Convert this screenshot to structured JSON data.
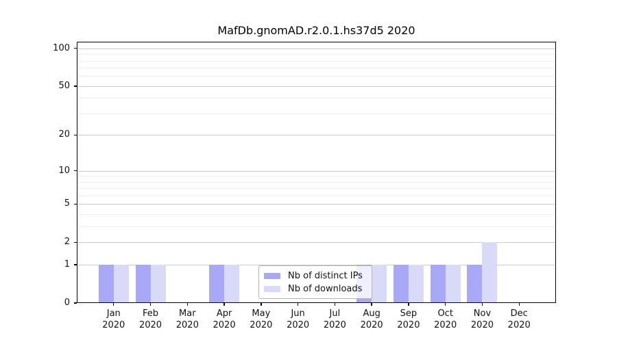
{
  "chart_data": {
    "type": "bar",
    "title": "MafDb.gnomAD.r2.0.1.hs37d5 2020",
    "categories": [
      "Jan",
      "Feb",
      "Mar",
      "Apr",
      "May",
      "Jun",
      "Jul",
      "Aug",
      "Sep",
      "Oct",
      "Nov",
      "Dec"
    ],
    "year_label": "2020",
    "series": [
      {
        "name": "Nb of distinct IPs",
        "color_key": "distinct_ips",
        "values": [
          1,
          1,
          0,
          1,
          0,
          0,
          0,
          1,
          1,
          1,
          1,
          0
        ]
      },
      {
        "name": "Nb of downloads",
        "color_key": "downloads",
        "values": [
          1,
          1,
          0,
          1,
          0,
          0,
          0,
          1,
          1,
          1,
          2,
          0
        ]
      }
    ],
    "yscale": "log1p",
    "ylim": [
      0,
      113
    ],
    "yticks": [
      0,
      1,
      2,
      5,
      10,
      20,
      50,
      100
    ],
    "minor_yticks": [
      3,
      4,
      6,
      7,
      8,
      9,
      30,
      40,
      60,
      70,
      80,
      90
    ],
    "grid": true,
    "legend_position": "inside-bottom-center"
  },
  "legend": {
    "items": [
      {
        "label": "Nb of distinct IPs",
        "color_key": "distinct_ips"
      },
      {
        "label": "Nb of downloads",
        "color_key": "downloads"
      }
    ]
  },
  "colors": {
    "distinct_ips": "#a8a8f7",
    "downloads": "#d9d9f8",
    "grid_major": "#cbcbcb",
    "grid_minor": "#ededed",
    "axis": "#000000",
    "text": "#111111",
    "legend_border": "#b3b3b3"
  }
}
